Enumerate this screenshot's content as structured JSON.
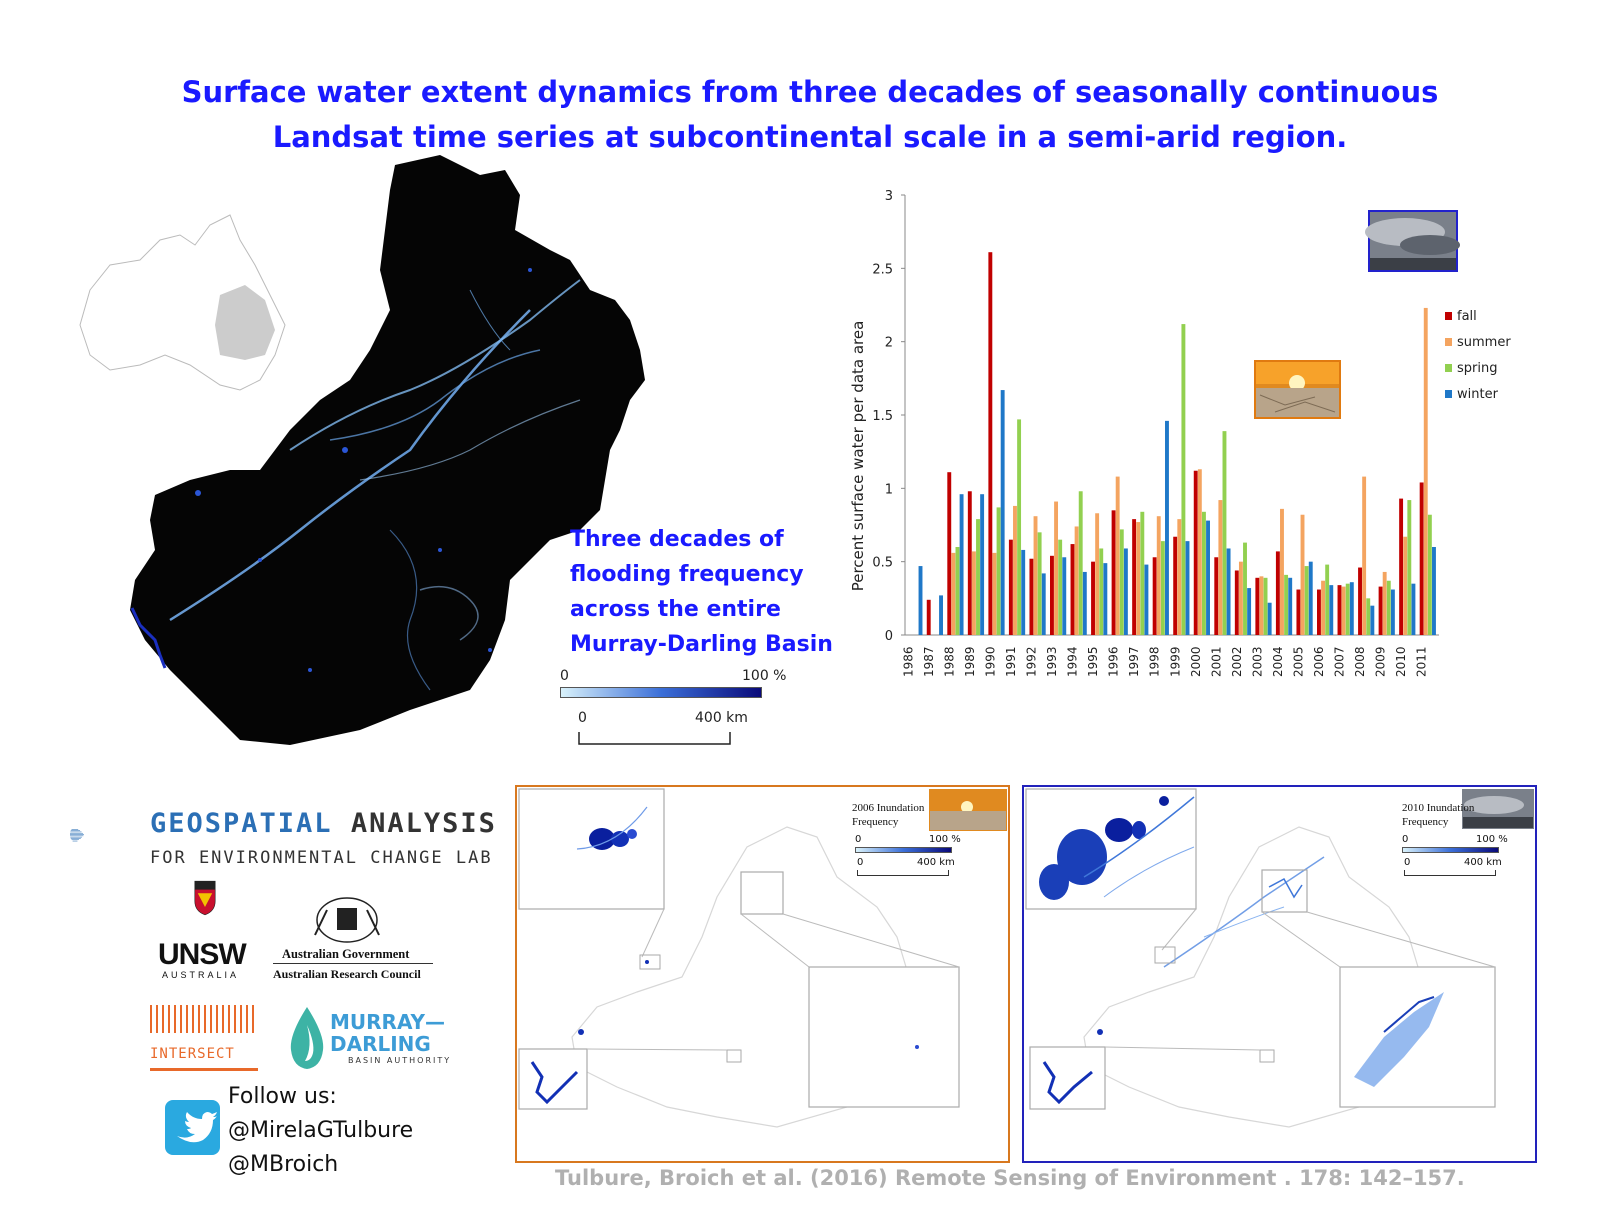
{
  "title": {
    "line1": "Surface water extent dynamics from three decades of seasonally continuous",
    "line2": "Landsat time series at subcontinental scale in a semi-arid region."
  },
  "map": {
    "caption": [
      "Three decades of",
      "flooding frequency",
      "across the entire",
      "Murray-Darling  Basin"
    ],
    "legend": {
      "min": "0",
      "max": "100 %",
      "scale_min": "0",
      "scale_max": "400 km"
    }
  },
  "chart_data": {
    "type": "bar",
    "ylabel": "Percent surface water per data area",
    "ylim": [
      0,
      3
    ],
    "yticks": [
      "0",
      "0.5",
      "1",
      "1.5",
      "2",
      "2.5",
      "3"
    ],
    "categories": [
      "1986",
      "1987",
      "1988",
      "1989",
      "1990",
      "1991",
      "1992",
      "1993",
      "1994",
      "1995",
      "1996",
      "1997",
      "1998",
      "1999",
      "2000",
      "2001",
      "2002",
      "2003",
      "2004",
      "2005",
      "2006",
      "2007",
      "2008",
      "2009",
      "2010",
      "2011"
    ],
    "legend_position": "right",
    "series": [
      {
        "name": "fall",
        "color": "#c00000",
        "values": [
          0,
          0.24,
          1.11,
          0.98,
          2.61,
          0.65,
          0.52,
          0.54,
          0.62,
          0.5,
          0.85,
          0.79,
          0.53,
          0.67,
          1.12,
          0.53,
          0.44,
          0.39,
          0.57,
          0.31,
          0.31,
          0.34,
          0.46,
          0.33,
          0.93,
          1.04
        ]
      },
      {
        "name": "summer",
        "color": "#f4a460",
        "values": [
          0,
          0,
          0.56,
          0.57,
          0.56,
          0.88,
          0.81,
          0.91,
          0.74,
          0.83,
          1.08,
          0.77,
          0.81,
          0.79,
          1.13,
          0.92,
          0.5,
          0.4,
          0.86,
          0.82,
          0.37,
          0.33,
          1.08,
          0.43,
          0.67,
          2.23
        ]
      },
      {
        "name": "spring",
        "color": "#92d050",
        "values": [
          0,
          0,
          0.6,
          0.79,
          0.87,
          1.47,
          0.7,
          0.65,
          0.98,
          0.59,
          0.72,
          0.84,
          0.64,
          2.12,
          0.84,
          1.39,
          0.63,
          0.39,
          0.41,
          0.47,
          0.48,
          0.35,
          0.25,
          0.37,
          0.92,
          0.82
        ]
      },
      {
        "name": "winter",
        "color": "#1f78c8",
        "values": [
          0.47,
          0.27,
          0.96,
          0.96,
          1.67,
          0.58,
          0.42,
          0.53,
          0.43,
          0.49,
          0.59,
          0.48,
          1.46,
          0.64,
          0.78,
          0.59,
          0.32,
          0.22,
          0.39,
          0.5,
          0.34,
          0.36,
          0.2,
          0.31,
          0.35,
          0.6
        ]
      }
    ]
  },
  "panel_2006": {
    "title": [
      "2006 Inundation",
      "Frequency"
    ],
    "legend_min": "0",
    "legend_max": "100 %",
    "scale_min": "0",
    "scale_max": "400 km"
  },
  "panel_2010": {
    "title": [
      "2010 Inundation",
      "Frequency"
    ],
    "legend_min": "0",
    "legend_max": "100 %",
    "scale_min": "0",
    "scale_max": "400 km"
  },
  "logos": {
    "lab": {
      "word1": "GEOSPATIAL",
      "word2": "ANALYSIS",
      "line2": "FOR ENVIRONMENTAL CHANGE LAB"
    },
    "unsw": {
      "word": "UNSW",
      "sub": "AUSTRALIA"
    },
    "arc": {
      "line1": "Australian Government",
      "line2": "Australian Research Council"
    },
    "intersect": {
      "word": "INTERSECT"
    },
    "mdba": {
      "line1": "MURRAY—",
      "line2": "DARLING",
      "line3": "BASIN AUTHORITY"
    }
  },
  "follow": {
    "heading": "Follow us:",
    "handle1": "@MirelaGTulbure",
    "handle2": "@MBroich"
  },
  "citation": "Tulbure, Broich et al.  (2016) Remote Sensing of Environment . 178: 142–157.",
  "colors": {
    "title": "#1a1aff",
    "citation": "#b0b0b0",
    "frame_2006": "#d8781f",
    "frame_2010": "#2222bb",
    "twitter": "#2aa9e0"
  }
}
